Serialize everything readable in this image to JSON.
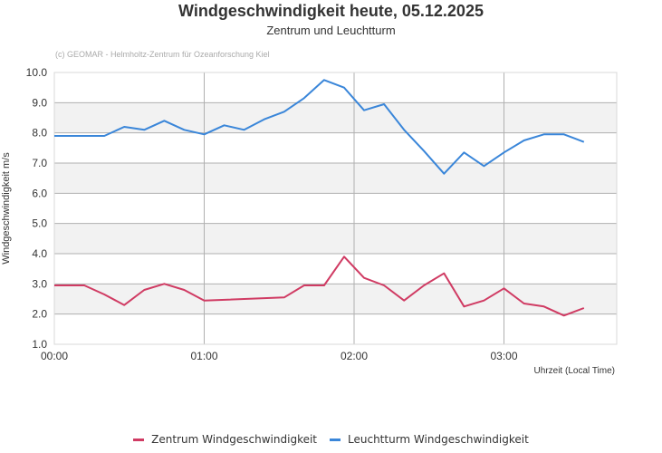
{
  "header": {
    "title": "Windgeschwindigkeit heute, 05.12.2025",
    "subtitle": "Zentrum und Leuchtturm",
    "credit": "(c) GEOMAR - Helmholtz-Zentrum für Ozeanforschung Kiel"
  },
  "axes": {
    "y_title": "Windgeschwindigkeit m/s",
    "x_title": "Uhrzeit (Local Time)",
    "y_ticks": [
      "10.0",
      "9.0",
      "8.0",
      "7.0",
      "6.0",
      "5.0",
      "4.0",
      "3.0",
      "2.0",
      "1.0"
    ],
    "x_ticks": [
      "00:00",
      "01:00",
      "02:00",
      "03:00"
    ]
  },
  "legend": {
    "items": [
      {
        "label": "Zentrum Windgeschwindigkeit",
        "color": "#d03b63"
      },
      {
        "label": "Leuchtturm Windgeschwindigkeit",
        "color": "#3a86d9"
      }
    ]
  },
  "chart_data": {
    "type": "line",
    "title": "Windgeschwindigkeit heute, 05.12.2025",
    "subtitle": "Zentrum und Leuchtturm",
    "xlabel": "Uhrzeit (Local Time)",
    "ylabel": "Windgeschwindigkeit m/s",
    "ylim": [
      1.0,
      10.0
    ],
    "xlim_minutes": [
      0,
      225
    ],
    "x_tick_labels": [
      "00:00",
      "01:00",
      "02:00",
      "03:00"
    ],
    "y_tick_labels": [
      "1.0",
      "2.0",
      "3.0",
      "4.0",
      "5.0",
      "6.0",
      "7.0",
      "8.0",
      "9.0",
      "10.0"
    ],
    "grid": true,
    "legend_position": "bottom",
    "series": [
      {
        "name": "Zentrum Windgeschwindigkeit",
        "color": "#d03b63",
        "x_minutes": [
          0,
          12,
          20,
          28,
          36,
          44,
          52,
          60,
          92,
          100,
          108,
          116,
          124,
          132,
          140,
          148,
          156,
          164,
          172,
          180,
          188,
          196,
          204,
          212
        ],
        "values": [
          2.95,
          2.95,
          2.65,
          2.3,
          2.8,
          3.0,
          2.8,
          2.45,
          2.55,
          2.95,
          2.95,
          3.9,
          3.2,
          2.95,
          2.45,
          2.95,
          3.35,
          2.25,
          2.45,
          2.85,
          2.35,
          2.25,
          1.95,
          2.2
        ]
      },
      {
        "name": "Leuchtturm Windgeschwindigkeit",
        "color": "#3a86d9",
        "x_minutes": [
          0,
          10,
          20,
          28,
          36,
          44,
          52,
          60,
          68,
          76,
          84,
          92,
          100,
          108,
          116,
          124,
          132,
          140,
          148,
          156,
          164,
          172,
          180,
          188,
          196,
          204,
          212
        ],
        "values": [
          7.9,
          7.9,
          7.9,
          8.2,
          8.1,
          8.4,
          8.1,
          7.95,
          8.25,
          8.1,
          8.45,
          8.7,
          9.15,
          9.75,
          9.5,
          8.75,
          8.95,
          8.1,
          7.4,
          6.65,
          7.35,
          6.9,
          7.35,
          7.75,
          7.95,
          7.95,
          7.7
        ]
      }
    ]
  }
}
